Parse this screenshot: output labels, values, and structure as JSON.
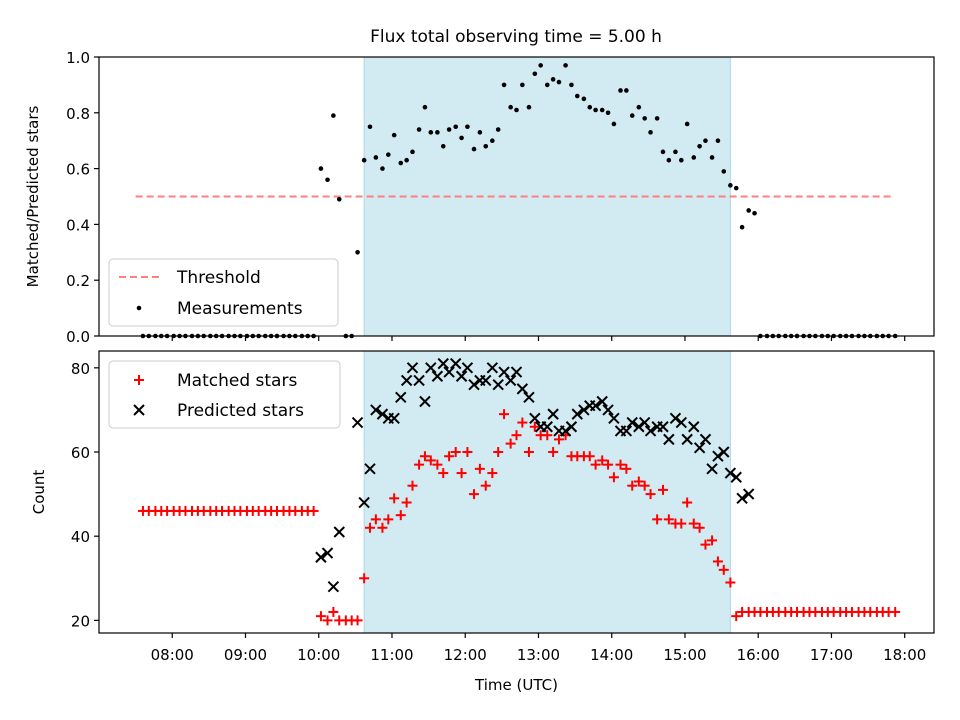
{
  "figure": {
    "title": "Flux total observing time = 5.00 h"
  },
  "chart_data": [
    {
      "type": "scatter",
      "name": "ratio",
      "title": "Flux total observing time = 5.00 h",
      "xlabel": "",
      "ylabel": "Matched/Predicted stars",
      "x_unit": "hours UTC",
      "xlim": [
        7.0,
        18.4
      ],
      "ylim": [
        0.0,
        1.0
      ],
      "yticks": [
        0.0,
        0.2,
        0.4,
        0.6,
        0.8,
        1.0
      ],
      "ytick_labels": [
        "0.0",
        "0.2",
        "0.4",
        "0.6",
        "0.8",
        "1.0"
      ],
      "shaded_region": {
        "x": [
          10.62,
          15.62
        ],
        "color": "#add8e6"
      },
      "threshold": {
        "name": "Threshold",
        "y": 0.5,
        "x": [
          7.5,
          17.85
        ],
        "color": "#ff7f7f",
        "style": "dashed"
      },
      "legend": {
        "position": "lower left",
        "entries": [
          "Threshold",
          "Measurements"
        ]
      },
      "series": [
        {
          "name": "Measurements",
          "color": "#000000",
          "marker": "dot",
          "x": [
            7.6,
            7.68,
            7.77,
            7.85,
            7.93,
            8.02,
            8.1,
            8.18,
            8.27,
            8.35,
            8.43,
            8.52,
            8.6,
            8.68,
            8.77,
            8.85,
            8.93,
            9.02,
            9.1,
            9.18,
            9.27,
            9.35,
            9.43,
            9.52,
            9.6,
            9.68,
            9.77,
            9.85,
            9.93,
            10.03,
            10.12,
            10.2,
            10.28,
            10.37,
            10.45,
            10.53,
            10.62,
            10.7,
            10.78,
            10.87,
            10.95,
            11.03,
            11.12,
            11.2,
            11.28,
            11.37,
            11.45,
            11.53,
            11.62,
            11.7,
            11.78,
            11.87,
            11.95,
            12.03,
            12.12,
            12.2,
            12.28,
            12.37,
            12.45,
            12.53,
            12.62,
            12.7,
            12.78,
            12.87,
            12.95,
            13.03,
            13.12,
            13.2,
            13.28,
            13.37,
            13.45,
            13.53,
            13.62,
            13.7,
            13.78,
            13.87,
            13.95,
            14.03,
            14.12,
            14.2,
            14.28,
            14.37,
            14.45,
            14.53,
            14.62,
            14.7,
            14.78,
            14.87,
            14.95,
            15.03,
            15.12,
            15.2,
            15.28,
            15.37,
            15.45,
            15.53,
            15.62,
            15.7,
            15.78,
            15.87,
            15.95,
            16.03,
            16.12,
            16.2,
            16.28,
            16.37,
            16.45,
            16.53,
            16.62,
            16.7,
            16.78,
            16.87,
            16.95,
            17.03,
            17.12,
            17.2,
            17.28,
            17.37,
            17.45,
            17.53,
            17.62,
            17.7,
            17.78,
            17.87
          ],
          "y": [
            0.0,
            0.0,
            0.0,
            0.0,
            0.0,
            0.0,
            0.0,
            0.0,
            0.0,
            0.0,
            0.0,
            0.0,
            0.0,
            0.0,
            0.0,
            0.0,
            0.0,
            0.0,
            0.0,
            0.0,
            0.0,
            0.0,
            0.0,
            0.0,
            0.0,
            0.0,
            0.0,
            0.0,
            0.0,
            0.6,
            0.56,
            0.79,
            0.49,
            0.0,
            0.0,
            0.3,
            0.63,
            0.75,
            0.64,
            0.6,
            0.65,
            0.72,
            0.62,
            0.63,
            0.66,
            0.74,
            0.82,
            0.73,
            0.73,
            0.68,
            0.74,
            0.75,
            0.71,
            0.75,
            0.67,
            0.73,
            0.68,
            0.7,
            0.74,
            0.9,
            0.82,
            0.81,
            0.9,
            0.82,
            0.94,
            0.97,
            0.9,
            0.92,
            0.91,
            0.97,
            0.9,
            0.86,
            0.85,
            0.82,
            0.81,
            0.81,
            0.8,
            0.76,
            0.88,
            0.88,
            0.79,
            0.82,
            0.78,
            0.73,
            0.78,
            0.66,
            0.63,
            0.66,
            0.63,
            0.76,
            0.64,
            0.68,
            0.7,
            0.64,
            0.7,
            0.59,
            0.54,
            0.53,
            0.39,
            0.45,
            0.44,
            0.0,
            0.0,
            0.0,
            0.0,
            0.0,
            0.0,
            0.0,
            0.0,
            0.0,
            0.0,
            0.0,
            0.0,
            0.0,
            0.0,
            0.0,
            0.0,
            0.0,
            0.0,
            0.0,
            0.0,
            0.0,
            0.0,
            0.0
          ]
        }
      ]
    },
    {
      "type": "scatter",
      "name": "counts",
      "xlabel": "Time (UTC)",
      "ylabel": "Count",
      "x_unit": "hours UTC",
      "xlim": [
        7.0,
        18.4
      ],
      "ylim": [
        17,
        84
      ],
      "yticks": [
        20,
        40,
        60,
        80
      ],
      "ytick_labels": [
        "20",
        "40",
        "60",
        "80"
      ],
      "xticks": [
        8,
        9,
        10,
        11,
        12,
        13,
        14,
        15,
        16,
        17,
        18
      ],
      "xtick_labels": [
        "08:00",
        "09:00",
        "10:00",
        "11:00",
        "12:00",
        "13:00",
        "14:00",
        "15:00",
        "16:00",
        "17:00",
        "18:00"
      ],
      "shaded_region": {
        "x": [
          10.62,
          15.62
        ],
        "color": "#add8e6"
      },
      "legend": {
        "position": "upper left",
        "entries": [
          "Matched stars",
          "Predicted stars"
        ]
      },
      "series": [
        {
          "name": "Matched stars",
          "color": "#ff0000",
          "marker": "plus",
          "x": [
            7.6,
            7.68,
            7.77,
            7.85,
            7.93,
            8.02,
            8.1,
            8.18,
            8.27,
            8.35,
            8.43,
            8.52,
            8.6,
            8.68,
            8.77,
            8.85,
            8.93,
            9.02,
            9.1,
            9.18,
            9.27,
            9.35,
            9.43,
            9.52,
            9.6,
            9.68,
            9.77,
            9.85,
            9.93,
            10.03,
            10.12,
            10.2,
            10.28,
            10.37,
            10.45,
            10.53,
            10.62,
            10.7,
            10.78,
            10.87,
            10.95,
            11.03,
            11.12,
            11.2,
            11.28,
            11.37,
            11.45,
            11.53,
            11.62,
            11.7,
            11.78,
            11.87,
            11.95,
            12.03,
            12.12,
            12.2,
            12.28,
            12.37,
            12.45,
            12.53,
            12.62,
            12.7,
            12.78,
            12.87,
            12.95,
            13.03,
            13.12,
            13.2,
            13.28,
            13.37,
            13.45,
            13.53,
            13.62,
            13.7,
            13.78,
            13.87,
            13.95,
            14.03,
            14.12,
            14.2,
            14.28,
            14.37,
            14.45,
            14.53,
            14.62,
            14.7,
            14.78,
            14.87,
            14.95,
            15.03,
            15.12,
            15.2,
            15.28,
            15.37,
            15.45,
            15.53,
            15.62,
            15.7,
            15.78,
            15.87,
            15.95,
            16.03,
            16.12,
            16.2,
            16.28,
            16.37,
            16.45,
            16.53,
            16.62,
            16.7,
            16.78,
            16.87,
            16.95,
            17.03,
            17.12,
            17.2,
            17.28,
            17.37,
            17.45,
            17.53,
            17.62,
            17.7,
            17.78,
            17.87
          ],
          "y": [
            46,
            46,
            46,
            46,
            46,
            46,
            46,
            46,
            46,
            46,
            46,
            46,
            46,
            46,
            46,
            46,
            46,
            46,
            46,
            46,
            46,
            46,
            46,
            46,
            46,
            46,
            46,
            46,
            46,
            21,
            20,
            22,
            20,
            20,
            20,
            20,
            30,
            42,
            44,
            42,
            44,
            49,
            45,
            48,
            52,
            57,
            59,
            58,
            57,
            55,
            59,
            60,
            55,
            60,
            50,
            56,
            52,
            55,
            60,
            69,
            62,
            64,
            67,
            60,
            66,
            64,
            64,
            60,
            63,
            64,
            59,
            59,
            59,
            59,
            57,
            58,
            57,
            54,
            57,
            56,
            52,
            53,
            52,
            50,
            44,
            51,
            44,
            43,
            43,
            48,
            43,
            42,
            38,
            39,
            34,
            32,
            29,
            21,
            22,
            22,
            22,
            22,
            22,
            22,
            22,
            22,
            22,
            22,
            22,
            22,
            22,
            22,
            22,
            22,
            22,
            22,
            22,
            22,
            22,
            22,
            22,
            22,
            22,
            22
          ]
        },
        {
          "name": "Predicted stars",
          "color": "#000000",
          "marker": "x",
          "x": [
            10.03,
            10.12,
            10.2,
            10.28,
            10.53,
            10.62,
            10.7,
            10.78,
            10.87,
            10.95,
            11.03,
            11.12,
            11.2,
            11.28,
            11.37,
            11.45,
            11.53,
            11.62,
            11.7,
            11.78,
            11.87,
            11.95,
            12.03,
            12.12,
            12.2,
            12.28,
            12.37,
            12.45,
            12.53,
            12.62,
            12.7,
            12.78,
            12.87,
            12.95,
            13.03,
            13.12,
            13.2,
            13.28,
            13.37,
            13.45,
            13.53,
            13.62,
            13.7,
            13.78,
            13.87,
            13.95,
            14.03,
            14.12,
            14.2,
            14.28,
            14.37,
            14.45,
            14.53,
            14.62,
            14.7,
            14.78,
            14.87,
            14.95,
            15.03,
            15.12,
            15.2,
            15.28,
            15.37,
            15.45,
            15.53,
            15.62,
            15.7,
            15.78,
            15.87
          ],
          "y": [
            35,
            36,
            28,
            41,
            67,
            48,
            56,
            70,
            69,
            68,
            68,
            73,
            77,
            80,
            77,
            72,
            80,
            78,
            81,
            79,
            81,
            78,
            80,
            76,
            77,
            77,
            80,
            76,
            79,
            77,
            79,
            75,
            73,
            68,
            66,
            66,
            69,
            65,
            65,
            66,
            69,
            70,
            71,
            71,
            72,
            70,
            68,
            65,
            65,
            67,
            66,
            67,
            65,
            66,
            66,
            63,
            68,
            67,
            63,
            66,
            61,
            63,
            56,
            59,
            60,
            55,
            54,
            49,
            50
          ]
        }
      ]
    }
  ]
}
